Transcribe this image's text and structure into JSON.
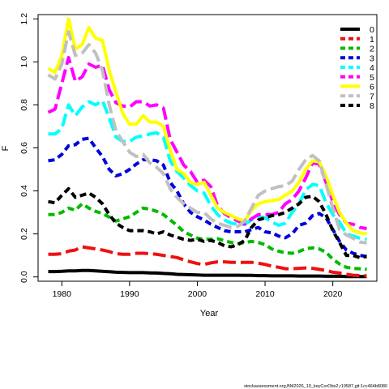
{
  "chart_data": {
    "type": "line",
    "title": "",
    "xlabel": "Year",
    "ylabel": "F",
    "xlim": [
      1976.5,
      2026.5
    ],
    "ylim": [
      -0.02,
      1.22
    ],
    "xticks": [
      1980,
      1990,
      2000,
      2010,
      2020
    ],
    "yticks": [
      0.0,
      0.2,
      0.4,
      0.6,
      0.8,
      1.0,
      1.2
    ],
    "ytick_labels": [
      "0.0",
      "0.2",
      "0.4",
      "0.6",
      "0.8",
      "1.0",
      "1.2"
    ],
    "grid": false,
    "legend_position": "top-right",
    "x": [
      1978,
      1979,
      1980,
      1981,
      1982,
      1983,
      1984,
      1985,
      1986,
      1987,
      1988,
      1989,
      1990,
      1991,
      1992,
      1993,
      1994,
      1995,
      1996,
      1997,
      1998,
      1999,
      2000,
      2001,
      2002,
      2003,
      2004,
      2005,
      2006,
      2007,
      2008,
      2009,
      2010,
      2011,
      2012,
      2013,
      2014,
      2015,
      2016,
      2017,
      2018,
      2019,
      2020,
      2021,
      2022,
      2023,
      2024,
      2025
    ],
    "series": [
      {
        "name": "0",
        "color": "#000000",
        "dash": "solid",
        "values": [
          0.025,
          0.025,
          0.026,
          0.028,
          0.028,
          0.03,
          0.03,
          0.028,
          0.026,
          0.024,
          0.022,
          0.021,
          0.02,
          0.02,
          0.02,
          0.019,
          0.018,
          0.016,
          0.015,
          0.012,
          0.011,
          0.01,
          0.009,
          0.008,
          0.008,
          0.008,
          0.008,
          0.008,
          0.008,
          0.007,
          0.007,
          0.006,
          0.006,
          0.005,
          0.005,
          0.005,
          0.005,
          0.004,
          0.004,
          0.004,
          0.004,
          0.003,
          0.003,
          0.003,
          0.002,
          0.002,
          0.002,
          0.002
        ]
      },
      {
        "name": "1",
        "color": "#ee1111",
        "dash": "longdash",
        "values": [
          0.105,
          0.105,
          0.108,
          0.12,
          0.125,
          0.14,
          0.135,
          0.13,
          0.125,
          0.118,
          0.108,
          0.105,
          0.105,
          0.11,
          0.11,
          0.108,
          0.105,
          0.1,
          0.095,
          0.09,
          0.08,
          0.07,
          0.062,
          0.058,
          0.065,
          0.07,
          0.07,
          0.068,
          0.068,
          0.068,
          0.068,
          0.064,
          0.058,
          0.05,
          0.045,
          0.038,
          0.038,
          0.04,
          0.042,
          0.04,
          0.035,
          0.03,
          0.022,
          0.018,
          0.012,
          0.008,
          0.006,
          0.005
        ]
      },
      {
        "name": "2",
        "color": "#00bb00",
        "dash": "dash",
        "values": [
          0.29,
          0.29,
          0.3,
          0.32,
          0.31,
          0.34,
          0.32,
          0.305,
          0.295,
          0.278,
          0.26,
          0.27,
          0.28,
          0.3,
          0.32,
          0.315,
          0.305,
          0.29,
          0.265,
          0.24,
          0.21,
          0.195,
          0.18,
          0.175,
          0.175,
          0.178,
          0.168,
          0.16,
          0.155,
          0.16,
          0.165,
          0.16,
          0.15,
          0.13,
          0.12,
          0.112,
          0.11,
          0.118,
          0.132,
          0.135,
          0.13,
          0.115,
          0.082,
          0.06,
          0.045,
          0.04,
          0.038,
          0.035
        ]
      },
      {
        "name": "3",
        "color": "#0000dd",
        "dash": "dash",
        "values": [
          0.54,
          0.545,
          0.57,
          0.61,
          0.615,
          0.64,
          0.645,
          0.6,
          0.56,
          0.5,
          0.47,
          0.48,
          0.5,
          0.525,
          0.545,
          0.545,
          0.54,
          0.52,
          0.44,
          0.4,
          0.34,
          0.3,
          0.28,
          0.265,
          0.245,
          0.23,
          0.215,
          0.21,
          0.21,
          0.21,
          0.22,
          0.23,
          0.21,
          0.205,
          0.19,
          0.182,
          0.2,
          0.24,
          0.25,
          0.285,
          0.295,
          0.275,
          0.22,
          0.165,
          0.125,
          0.11,
          0.1,
          0.095
        ]
      },
      {
        "name": "4",
        "color": "#00ffff",
        "dash": "longdash",
        "values": [
          0.665,
          0.665,
          0.69,
          0.8,
          0.75,
          0.79,
          0.815,
          0.8,
          0.82,
          0.74,
          0.65,
          0.63,
          0.63,
          0.65,
          0.655,
          0.665,
          0.67,
          0.65,
          0.54,
          0.49,
          0.46,
          0.425,
          0.4,
          0.39,
          0.33,
          0.29,
          0.265,
          0.25,
          0.245,
          0.245,
          0.265,
          0.28,
          0.275,
          0.255,
          0.24,
          0.25,
          0.3,
          0.34,
          0.405,
          0.43,
          0.425,
          0.345,
          0.29,
          0.255,
          0.2,
          0.19,
          0.18,
          0.175
        ]
      },
      {
        "name": "5",
        "color": "#ff00ff",
        "dash": "longdash",
        "values": [
          0.765,
          0.78,
          0.9,
          1.02,
          0.91,
          0.93,
          0.99,
          0.975,
          0.985,
          0.87,
          0.81,
          0.795,
          0.79,
          0.815,
          0.815,
          0.795,
          0.8,
          0.785,
          0.64,
          0.58,
          0.52,
          0.49,
          0.44,
          0.45,
          0.42,
          0.33,
          0.295,
          0.275,
          0.26,
          0.245,
          0.27,
          0.29,
          0.29,
          0.29,
          0.3,
          0.34,
          0.36,
          0.4,
          0.46,
          0.53,
          0.525,
          0.44,
          0.35,
          0.29,
          0.25,
          0.245,
          0.23,
          0.225
        ]
      },
      {
        "name": "6",
        "color": "#ffff00",
        "dash": "solid",
        "values": [
          0.97,
          0.95,
          1.03,
          1.2,
          1.06,
          1.08,
          1.16,
          1.11,
          1.1,
          0.96,
          0.86,
          0.76,
          0.71,
          0.71,
          0.75,
          0.72,
          0.72,
          0.7,
          0.59,
          0.5,
          0.48,
          0.44,
          0.43,
          0.44,
          0.38,
          0.32,
          0.3,
          0.285,
          0.27,
          0.26,
          0.31,
          0.34,
          0.35,
          0.355,
          0.36,
          0.38,
          0.4,
          0.44,
          0.5,
          0.54,
          0.535,
          0.47,
          0.38,
          0.3,
          0.25,
          0.215,
          0.205,
          0.2
        ]
      },
      {
        "name": "7",
        "color": "#c0c0c0",
        "dash": "longdash",
        "values": [
          0.94,
          0.92,
          0.99,
          1.14,
          1.03,
          1.04,
          1.08,
          1.04,
          0.96,
          0.8,
          0.68,
          0.63,
          0.58,
          0.56,
          0.57,
          0.53,
          0.51,
          0.48,
          0.41,
          0.37,
          0.34,
          0.32,
          0.3,
          0.3,
          0.27,
          0.25,
          0.24,
          0.23,
          0.235,
          0.26,
          0.32,
          0.38,
          0.4,
          0.41,
          0.42,
          0.425,
          0.445,
          0.5,
          0.545,
          0.565,
          0.54,
          0.43,
          0.32,
          0.22,
          0.195,
          0.18,
          0.162,
          0.158
        ]
      },
      {
        "name": "8",
        "color": "#000000",
        "dash": "dash",
        "values": [
          0.35,
          0.345,
          0.38,
          0.41,
          0.37,
          0.38,
          0.39,
          0.37,
          0.34,
          0.29,
          0.25,
          0.23,
          0.215,
          0.215,
          0.215,
          0.21,
          0.2,
          0.21,
          0.195,
          0.185,
          0.175,
          0.17,
          0.175,
          0.165,
          0.17,
          0.16,
          0.145,
          0.14,
          0.15,
          0.17,
          0.23,
          0.265,
          0.275,
          0.285,
          0.29,
          0.3,
          0.32,
          0.34,
          0.37,
          0.375,
          0.35,
          0.29,
          0.215,
          0.16,
          0.1,
          0.1,
          0.09,
          0.095
        ]
      }
    ]
  },
  "footer_text": "stockassessment.org,BM2026_10_keyCorObs2,r19587,git:1cc464b8080"
}
